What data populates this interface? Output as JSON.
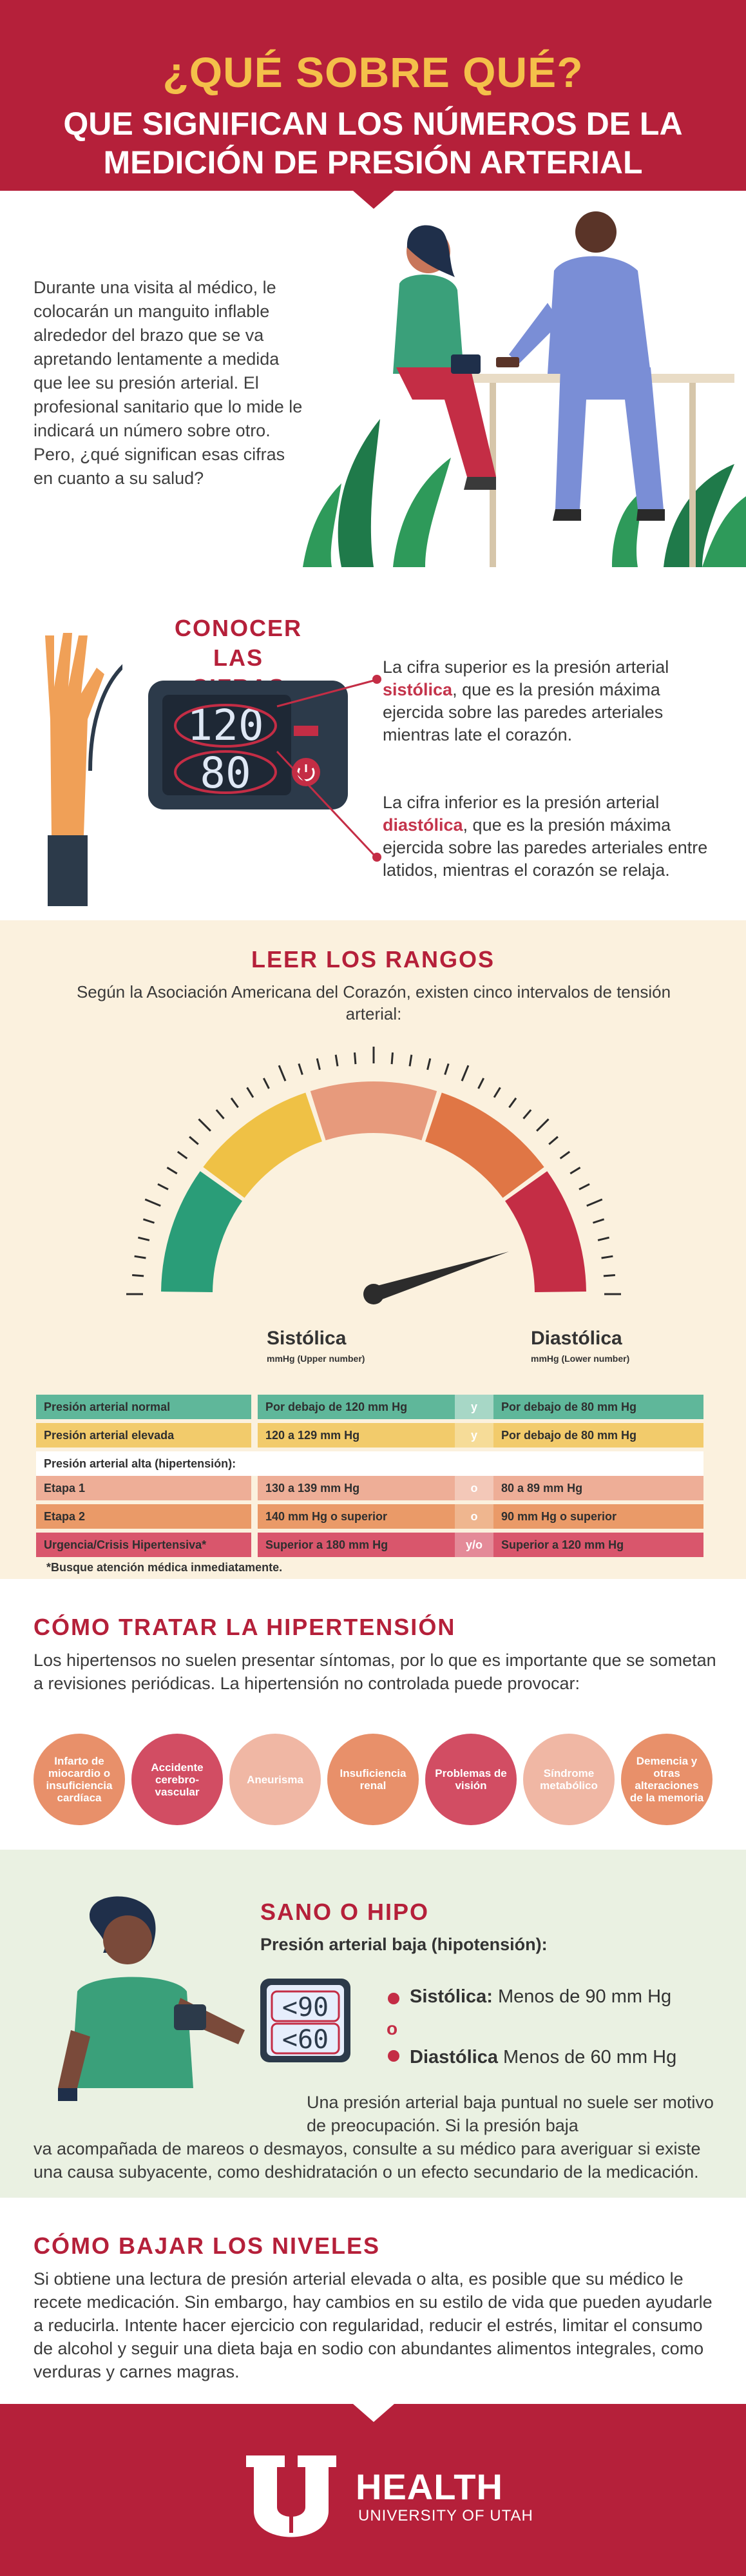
{
  "header": {
    "title": "¿QUÉ SOBRE QUÉ?",
    "subtitle_line1": "QUE SIGNIFICAN LOS NÚMEROS DE LA",
    "subtitle_line2": "MEDICIÓN DE PRESIÓN ARTERIAL"
  },
  "intro": {
    "text": "Durante una visita al médico, le colocarán un manguito inflable alrededor del brazo que se va apretando lentamente a medida que lee su presión arterial. El profesional sanitario que lo mide le indicará un número sobre otro. Pero, ¿qué significan esas cifras en cuanto a su salud?"
  },
  "numbers": {
    "heading_line1": "CONOCER LAS",
    "heading_line2": "CIFRAS",
    "monitor_top": "120",
    "monitor_bottom": "80",
    "p1_before": "La cifra superior es la presión arterial ",
    "p1_highlight": "sistólica",
    "p1_after": ", que es la presión máxima ejercida sobre las paredes arteriales mientras late el corazón.",
    "p2_before": "La cifra inferior es la presión arterial ",
    "p2_highlight": "diastólica",
    "p2_after": ", que es la presión máxima ejercida sobre las paredes arteriales entre latidos, mientras el corazón se relaja."
  },
  "ranges": {
    "heading": "LEER LOS RANGOS",
    "subtitle": "Según la Asociación Americana del Corazón, existen cinco intervalos de tensión arterial:",
    "systolic_header": "Sistólica",
    "systolic_sub": "mmHg (Upper number)",
    "diastolic_header": "Diastólica",
    "diastolic_sub": "mmHg (Lower number)",
    "gauge_colors": [
      "#2a9d78",
      "#efc145",
      "#e79a7c",
      "#e07645",
      "#c42d45"
    ],
    "rows": [
      {
        "label": "Presión arterial normal",
        "sys": "Por debajo de 120 mm Hg",
        "conn": "y",
        "dia": "Por debajo de 80 mm Hg",
        "color": "#5fb79a",
        "tint": "#a7d7c6"
      },
      {
        "label": "Presión arterial elevada",
        "sys": "120 a 129 mm Hg",
        "conn": "y",
        "dia": "Por debajo de 80 mm Hg",
        "color": "#f2cb6b",
        "tint": "#f6dc98"
      },
      {
        "label": "Presión arterial alta (hipertensión):",
        "sys": "",
        "conn": "",
        "dia": "",
        "color": "#ffffff",
        "tint": "#ffffff"
      },
      {
        "label": "Etapa 1",
        "sys": "130 a 139 mm Hg",
        "conn": "o",
        "dia": "80 a 89 mm Hg",
        "color": "#eeae97",
        "tint": "#f3c8b8"
      },
      {
        "label": "Etapa 2",
        "sys": "140 mm Hg o superior",
        "conn": "o",
        "dia": "90 mm Hg o superior",
        "color": "#ea9a68",
        "tint": "#efb68f"
      },
      {
        "label": "Urgencia/Crisis Hipertensiva*",
        "sys": "Superior a 180 mm Hg",
        "conn": "y/o",
        "dia": "Superior a 120 mm Hg",
        "color": "#d9566c",
        "tint": "#e48a98"
      }
    ],
    "note": "*Busque atención médica inmediatamente."
  },
  "treat": {
    "heading": "CÓMO TRATAR LA HIPERTENSIÓN",
    "text": "Los hipertensos no suelen presentar síntomas, por lo que es importante que se sometan a revisiones periódicas. La hipertensión no controlada puede provocar:",
    "circles": [
      {
        "label": "Infarto de miocardio o insuficiencia cardíaca",
        "color": "#e8906a"
      },
      {
        "label": "Accidente cerebro-vascular",
        "color": "#d24d63"
      },
      {
        "label": "Aneurisma",
        "color": "#f0b7a4"
      },
      {
        "label": "Insuficiencia renal",
        "color": "#e8906a"
      },
      {
        "label": "Problemas de visión",
        "color": "#d24d63"
      },
      {
        "label": "Síndrome metabólico",
        "color": "#f0b7a4"
      },
      {
        "label": "Demencia y otras alteraciones de la memoria",
        "color": "#e8906a"
      }
    ]
  },
  "hypo": {
    "heading": "SANO O HIPO",
    "subtitle": "Presión arterial baja (hipotensión):",
    "monitor_top": "<90",
    "monitor_bottom": "<60",
    "connector": "o",
    "sys_label": "Sistólica:",
    "sys_value": " Menos de 90 mm Hg",
    "dia_label": "Diastólica",
    "dia_value": " Menos de 60 mm Hg",
    "p1": "Una presión arterial baja puntual no suele ser motivo de preocupación. Si la presión baja",
    "p2": "va acompañada de mareos o desmayos, consulte a su médico para averiguar si existe una causa subyacente, como deshidratación o un efecto secundario de la medicación."
  },
  "lower": {
    "heading": "CÓMO BAJAR LOS NIVELES",
    "text": "Si obtiene una lectura de presión arterial elevada o alta, es posible que su médico le recete medicación. Sin embargo, hay cambios en su estilo de vida que pueden ayudarle a reducirla. Intente hacer ejercicio con regularidad, reducir el estrés, limitar el consumo de alcohol y seguir una dieta baja en sodio con abundantes alimentos integrales, como verduras y carnes magras."
  },
  "footer": {
    "logo": "HEALTH",
    "org": "UNIVERSITY OF UTAH"
  }
}
